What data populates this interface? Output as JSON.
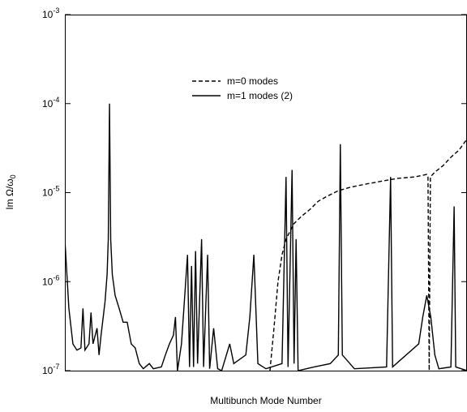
{
  "chart_data": {
    "type": "line",
    "xlabel": "Multibunch Mode Number",
    "ylabel": "Im Ω/ω0",
    "ylog": true,
    "xlim": [
      0,
      100
    ],
    "ylim": [
      1e-07,
      0.001
    ],
    "yticks": [
      {
        "value": 1e-07,
        "label": "10-7"
      },
      {
        "value": 1e-06,
        "label": "10-6"
      },
      {
        "value": 1e-05,
        "label": "10-5"
      },
      {
        "value": 0.0001,
        "label": "10-4"
      },
      {
        "value": 0.001,
        "label": "10-3"
      }
    ],
    "legend": "upper center",
    "series": [
      {
        "name": "m=0 modes",
        "color": "#000000",
        "style": "dashed",
        "x": [
          51,
          52,
          53,
          54,
          55,
          57,
          59,
          61,
          63,
          65,
          68,
          71,
          75,
          79,
          83,
          87,
          90,
          90.3,
          90.6,
          90.9,
          92,
          94,
          96,
          98,
          100
        ],
        "values": [
          1e-07,
          3e-07,
          1e-06,
          2e-06,
          3e-06,
          4.5e-06,
          5.5e-06,
          6.5e-06,
          8e-06,
          9e-06,
          1.05e-05,
          1.15e-05,
          1.25e-05,
          1.35e-05,
          1.45e-05,
          1.5e-05,
          1.6e-05,
          1.5e-05,
          1e-07,
          1.5e-05,
          1.7e-05,
          2e-05,
          2.5e-05,
          3e-05,
          4e-05
        ]
      },
      {
        "name": "m=1 modes (2)",
        "color": "#000000",
        "style": "solid",
        "x": [
          0,
          1,
          2,
          3,
          4,
          4.5,
          5,
          6,
          6.5,
          7,
          8,
          8.5,
          9,
          10,
          10.5,
          10.8,
          11.1,
          11.4,
          11.8,
          12.5,
          13.5,
          14.5,
          15.5,
          16.5,
          17.5,
          18.5,
          19.5,
          21,
          22,
          24,
          25,
          26,
          27,
          27.5,
          28,
          29,
          30.5,
          31,
          31.5,
          32,
          32.5,
          33,
          34,
          34.5,
          35.5,
          36,
          37,
          38,
          39,
          41,
          42,
          45,
          46,
          47,
          48,
          50,
          54,
          55,
          55.5,
          56.5,
          57,
          57.5,
          58,
          62,
          66,
          68,
          68.5,
          69,
          72,
          80,
          81,
          81.5,
          88,
          89,
          90,
          91,
          92,
          93,
          96,
          96.8,
          97.2,
          100
        ],
        "values": [
          3e-06,
          5e-07,
          2e-07,
          1.7e-07,
          1.8e-07,
          5e-07,
          1.7e-07,
          2e-07,
          4.5e-07,
          2e-07,
          3e-07,
          1.5e-07,
          2.5e-07,
          6e-07,
          1.2e-06,
          3e-06,
          0.0001,
          3e-06,
          1.2e-06,
          7e-07,
          5e-07,
          3.5e-07,
          3.5e-07,
          2e-07,
          1.8e-07,
          1.2e-07,
          1.05e-07,
          1.2e-07,
          1.05e-07,
          1.1e-07,
          1.5e-07,
          2e-07,
          2.5e-07,
          4e-07,
          1e-07,
          2e-07,
          2e-06,
          1.1e-07,
          1.5e-06,
          1.1e-07,
          2.2e-06,
          1.2e-07,
          3e-06,
          1.1e-07,
          2e-06,
          1.05e-07,
          3e-07,
          1.05e-07,
          1e-07,
          2e-07,
          1.2e-07,
          1.5e-07,
          4e-07,
          2e-06,
          1.2e-07,
          1.05e-07,
          1.2e-07,
          1.5e-05,
          1.1e-07,
          1.8e-05,
          1.2e-07,
          3e-06,
          1e-07,
          1.1e-07,
          1.2e-07,
          1.5e-07,
          3.5e-05,
          1.5e-07,
          1.05e-07,
          1.1e-07,
          1.5e-05,
          1.1e-07,
          2e-07,
          4e-07,
          7e-07,
          4e-07,
          1.5e-07,
          1.05e-07,
          1.1e-07,
          7e-06,
          1.1e-07,
          1e-07
        ]
      }
    ]
  }
}
